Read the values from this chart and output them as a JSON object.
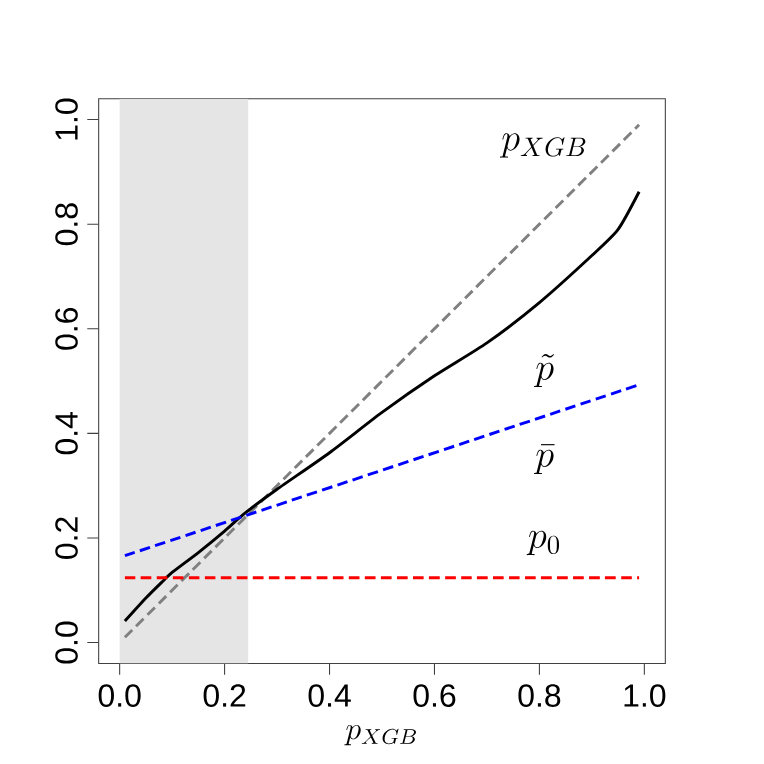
{
  "chart_data": {
    "type": "line",
    "xlabel": "p_{XGB}",
    "xlim": [
      -0.04,
      1.04
    ],
    "ylim": [
      -0.04,
      1.04
    ],
    "xticks": [
      {
        "value": 0,
        "label": "0.0"
      },
      0.2,
      0.4,
      0.6,
      0.8,
      {
        "value": 1,
        "label": "1.0"
      }
    ],
    "yticks": [
      {
        "value": 0,
        "label": "0.0"
      },
      0.2,
      0.4,
      0.6,
      0.8,
      {
        "value": 1,
        "label": "1.0"
      }
    ],
    "bands": [
      {
        "axis": "x",
        "from": 0,
        "to": 0.245,
        "color": "#e5e5e5"
      }
    ],
    "series": [
      {
        "color": "#808080",
        "line_style": "dashed",
        "x": [
          0.01,
          0.99
        ],
        "values": [
          0.01,
          0.99
        ]
      },
      {
        "color": "#000000",
        "line_style": "solid",
        "x": [
          0.01,
          0.05,
          0.08,
          0.1,
          0.15,
          0.2,
          0.237,
          0.3,
          0.4,
          0.5,
          0.6,
          0.7,
          0.8,
          0.9,
          0.95,
          0.99
        ],
        "values": [
          0.041,
          0.085,
          0.115,
          0.134,
          0.172,
          0.213,
          0.246,
          0.293,
          0.363,
          0.44,
          0.51,
          0.573,
          0.65,
          0.74,
          0.79,
          0.862
        ]
      },
      {
        "color": "#0000ff",
        "line_style": "dashed",
        "x": [
          0.01,
          0.99
        ],
        "values": [
          0.166,
          0.493
        ]
      },
      {
        "color": "#ff0000",
        "line_style": "dashed",
        "x": [
          0.01,
          0.99
        ],
        "values": [
          0.124,
          0.124
        ]
      }
    ],
    "annotations": [
      "p_{XGB}",
      "\\tilde{p}",
      "\\bar{p}",
      "p_0"
    ]
  }
}
